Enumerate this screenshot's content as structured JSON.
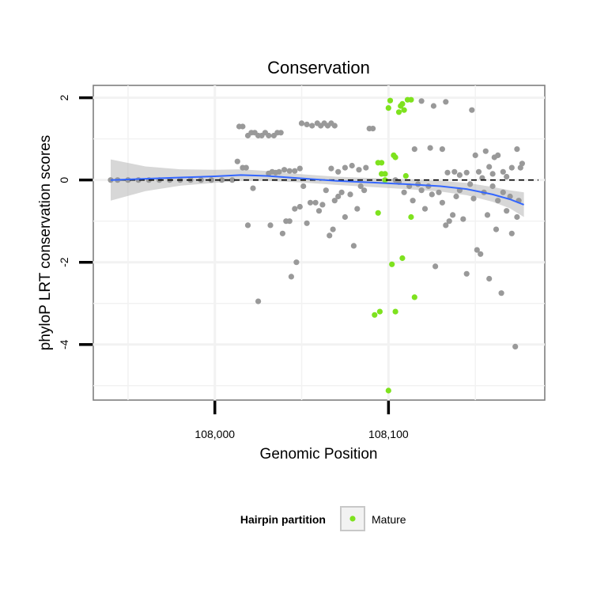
{
  "chart_data": {
    "type": "scatter",
    "title": "Conservation",
    "xlabel": "Genomic Position",
    "ylabel": "phyloP LRT conservation scores",
    "xlim": [
      107930,
      108190
    ],
    "ylim": [
      -5.35,
      2.3
    ],
    "x_ticks": [
      108000,
      108100
    ],
    "x_tick_labels": [
      "108,000",
      "108,100"
    ],
    "y_ticks": [
      -4,
      -2,
      0,
      2
    ],
    "y_tick_labels": [
      "-4",
      "-2",
      "0",
      "2"
    ],
    "grid": true,
    "reference_line": {
      "y": 0,
      "style": "dashed",
      "color": "#000000"
    },
    "legend": {
      "title": "Hairpin partition",
      "position": "bottom",
      "entries": [
        {
          "label": "Mature",
          "color": "#7ee21e"
        }
      ]
    },
    "colors": {
      "other": "#999999",
      "mature": "#7ee21e",
      "smooth": "#3366ff",
      "band": "#bdbdbd"
    },
    "series": [
      {
        "partition": "other",
        "points": [
          [
            107940,
            0.0
          ],
          [
            107944,
            0.0
          ],
          [
            107950,
            0.0
          ],
          [
            107956,
            0.0
          ],
          [
            107962,
            0.0
          ],
          [
            107968,
            0.0
          ],
          [
            107974,
            0.0
          ],
          [
            107980,
            0.0
          ],
          [
            107986,
            0.0
          ],
          [
            107992,
            0.0
          ],
          [
            107998,
            0.0
          ],
          [
            108004,
            0.0
          ],
          [
            108010,
            0.0
          ],
          [
            108014,
            1.3
          ],
          [
            108016,
            1.3
          ],
          [
            108019,
            1.08
          ],
          [
            108021,
            1.15
          ],
          [
            108023,
            1.15
          ],
          [
            108025,
            1.08
          ],
          [
            108027,
            1.08
          ],
          [
            108029,
            1.15
          ],
          [
            108031,
            1.08
          ],
          [
            108034,
            1.08
          ],
          [
            108036,
            1.15
          ],
          [
            108038,
            1.15
          ],
          [
            108013,
            0.45
          ],
          [
            108016,
            0.3
          ],
          [
            108018,
            0.3
          ],
          [
            108031,
            0.16
          ],
          [
            108033,
            0.2
          ],
          [
            108035,
            0.18
          ],
          [
            108037,
            0.2
          ],
          [
            108040,
            0.25
          ],
          [
            108043,
            0.22
          ],
          [
            108046,
            0.22
          ],
          [
            108049,
            0.28
          ],
          [
            108019,
            -1.1
          ],
          [
            108022,
            -0.2
          ],
          [
            108025,
            -2.95
          ],
          [
            108032,
            -1.1
          ],
          [
            108039,
            -1.3
          ],
          [
            108041,
            -1.0
          ],
          [
            108043,
            -1.0
          ],
          [
            108044,
            -2.35
          ],
          [
            108046,
            -0.7
          ],
          [
            108047,
            -2.0
          ],
          [
            108049,
            -0.65
          ],
          [
            108051,
            -0.15
          ],
          [
            108053,
            -1.05
          ],
          [
            108055,
            -0.55
          ],
          [
            108058,
            -0.55
          ],
          [
            108060,
            -0.75
          ],
          [
            108062,
            -0.6
          ],
          [
            108064,
            -0.25
          ],
          [
            108066,
            -1.35
          ],
          [
            108068,
            -1.2
          ],
          [
            108069,
            -0.5
          ],
          [
            108071,
            -0.4
          ],
          [
            108073,
            -0.3
          ],
          [
            108075,
            -0.9
          ],
          [
            108078,
            -0.35
          ],
          [
            108080,
            -1.6
          ],
          [
            108082,
            -0.7
          ],
          [
            108084,
            -0.15
          ],
          [
            108086,
            -0.25
          ],
          [
            108050,
            1.38
          ],
          [
            108053,
            1.35
          ],
          [
            108056,
            1.32
          ],
          [
            108059,
            1.38
          ],
          [
            108061,
            1.32
          ],
          [
            108063,
            1.38
          ],
          [
            108065,
            1.32
          ],
          [
            108067,
            1.38
          ],
          [
            108069,
            1.32
          ],
          [
            108067,
            0.28
          ],
          [
            108071,
            0.2
          ],
          [
            108075,
            0.3
          ],
          [
            108079,
            0.35
          ],
          [
            108083,
            0.25
          ],
          [
            108087,
            0.3
          ],
          [
            108089,
            1.25
          ],
          [
            108091,
            1.25
          ],
          [
            108104,
            0.0
          ],
          [
            108106,
            -0.05
          ],
          [
            108109,
            -0.3
          ],
          [
            108112,
            -0.15
          ],
          [
            108114,
            -0.5
          ],
          [
            108117,
            -0.1
          ],
          [
            108119,
            -0.25
          ],
          [
            108121,
            -0.7
          ],
          [
            108123,
            -0.15
          ],
          [
            108125,
            -0.35
          ],
          [
            108127,
            -2.1
          ],
          [
            108129,
            -0.3
          ],
          [
            108131,
            -0.55
          ],
          [
            108133,
            -1.1
          ],
          [
            108135,
            -1.0
          ],
          [
            108137,
            -0.85
          ],
          [
            108139,
            -0.4
          ],
          [
            108141,
            -0.25
          ],
          [
            108143,
            -0.95
          ],
          [
            108145,
            -2.28
          ],
          [
            108147,
            -0.1
          ],
          [
            108149,
            -0.45
          ],
          [
            108151,
            -1.7
          ],
          [
            108153,
            -1.8
          ],
          [
            108155,
            -0.3
          ],
          [
            108157,
            -0.85
          ],
          [
            108158,
            -2.4
          ],
          [
            108160,
            -0.15
          ],
          [
            108162,
            -1.2
          ],
          [
            108163,
            -0.5
          ],
          [
            108165,
            -2.75
          ],
          [
            108166,
            -0.3
          ],
          [
            108168,
            -0.75
          ],
          [
            108170,
            -0.4
          ],
          [
            108171,
            -1.3
          ],
          [
            108173,
            -4.05
          ],
          [
            108174,
            -0.9
          ],
          [
            108175,
            -0.5
          ],
          [
            108115,
            0.75
          ],
          [
            108119,
            1.92
          ],
          [
            108124,
            0.78
          ],
          [
            108126,
            1.8
          ],
          [
            108131,
            0.75
          ],
          [
            108133,
            1.9
          ],
          [
            108134,
            0.18
          ],
          [
            108138,
            0.2
          ],
          [
            108141,
            0.12
          ],
          [
            108145,
            0.18
          ],
          [
            108148,
            1.7
          ],
          [
            108150,
            0.6
          ],
          [
            108152,
            0.2
          ],
          [
            108154,
            0.05
          ],
          [
            108156,
            0.7
          ],
          [
            108158,
            0.32
          ],
          [
            108160,
            0.15
          ],
          [
            108161,
            0.55
          ],
          [
            108163,
            0.6
          ],
          [
            108166,
            0.2
          ],
          [
            108168,
            0.08
          ],
          [
            108171,
            0.3
          ],
          [
            108174,
            0.75
          ],
          [
            108176,
            0.3
          ],
          [
            108177,
            0.4
          ]
        ]
      },
      {
        "partition": "mature",
        "name": "Mature",
        "points": [
          [
            108094,
            0.42
          ],
          [
            108096,
            0.42
          ],
          [
            108096,
            0.15
          ],
          [
            108098,
            0.15
          ],
          [
            108100,
            1.75
          ],
          [
            108101,
            1.93
          ],
          [
            108103,
            0.6
          ],
          [
            108104,
            0.55
          ],
          [
            108106,
            1.65
          ],
          [
            108107,
            1.8
          ],
          [
            108108,
            1.85
          ],
          [
            108109,
            1.7
          ],
          [
            108111,
            1.95
          ],
          [
            108113,
            1.95
          ],
          [
            108110,
            0.1
          ],
          [
            108098,
            0.0
          ],
          [
            108094,
            -0.8
          ],
          [
            108113,
            -0.9
          ],
          [
            108102,
            -2.05
          ],
          [
            108108,
            -1.9
          ],
          [
            108115,
            -2.85
          ],
          [
            108092,
            -3.28
          ],
          [
            108095,
            -3.2
          ],
          [
            108104,
            -3.2
          ],
          [
            108100,
            -5.12
          ]
        ]
      }
    ],
    "smooth": {
      "x": [
        107940,
        107960,
        107980,
        108000,
        108015,
        108030,
        108050,
        108070,
        108090,
        108110,
        108130,
        108145,
        108160,
        108170,
        108178
      ],
      "y": [
        0.0,
        0.03,
        0.06,
        0.09,
        0.12,
        0.1,
        0.04,
        -0.02,
        -0.06,
        -0.1,
        -0.15,
        -0.22,
        -0.35,
        -0.47,
        -0.6
      ],
      "se": [
        0.5,
        0.3,
        0.2,
        0.16,
        0.14,
        0.12,
        0.1,
        0.1,
        0.11,
        0.12,
        0.13,
        0.15,
        0.18,
        0.22,
        0.3
      ]
    }
  }
}
